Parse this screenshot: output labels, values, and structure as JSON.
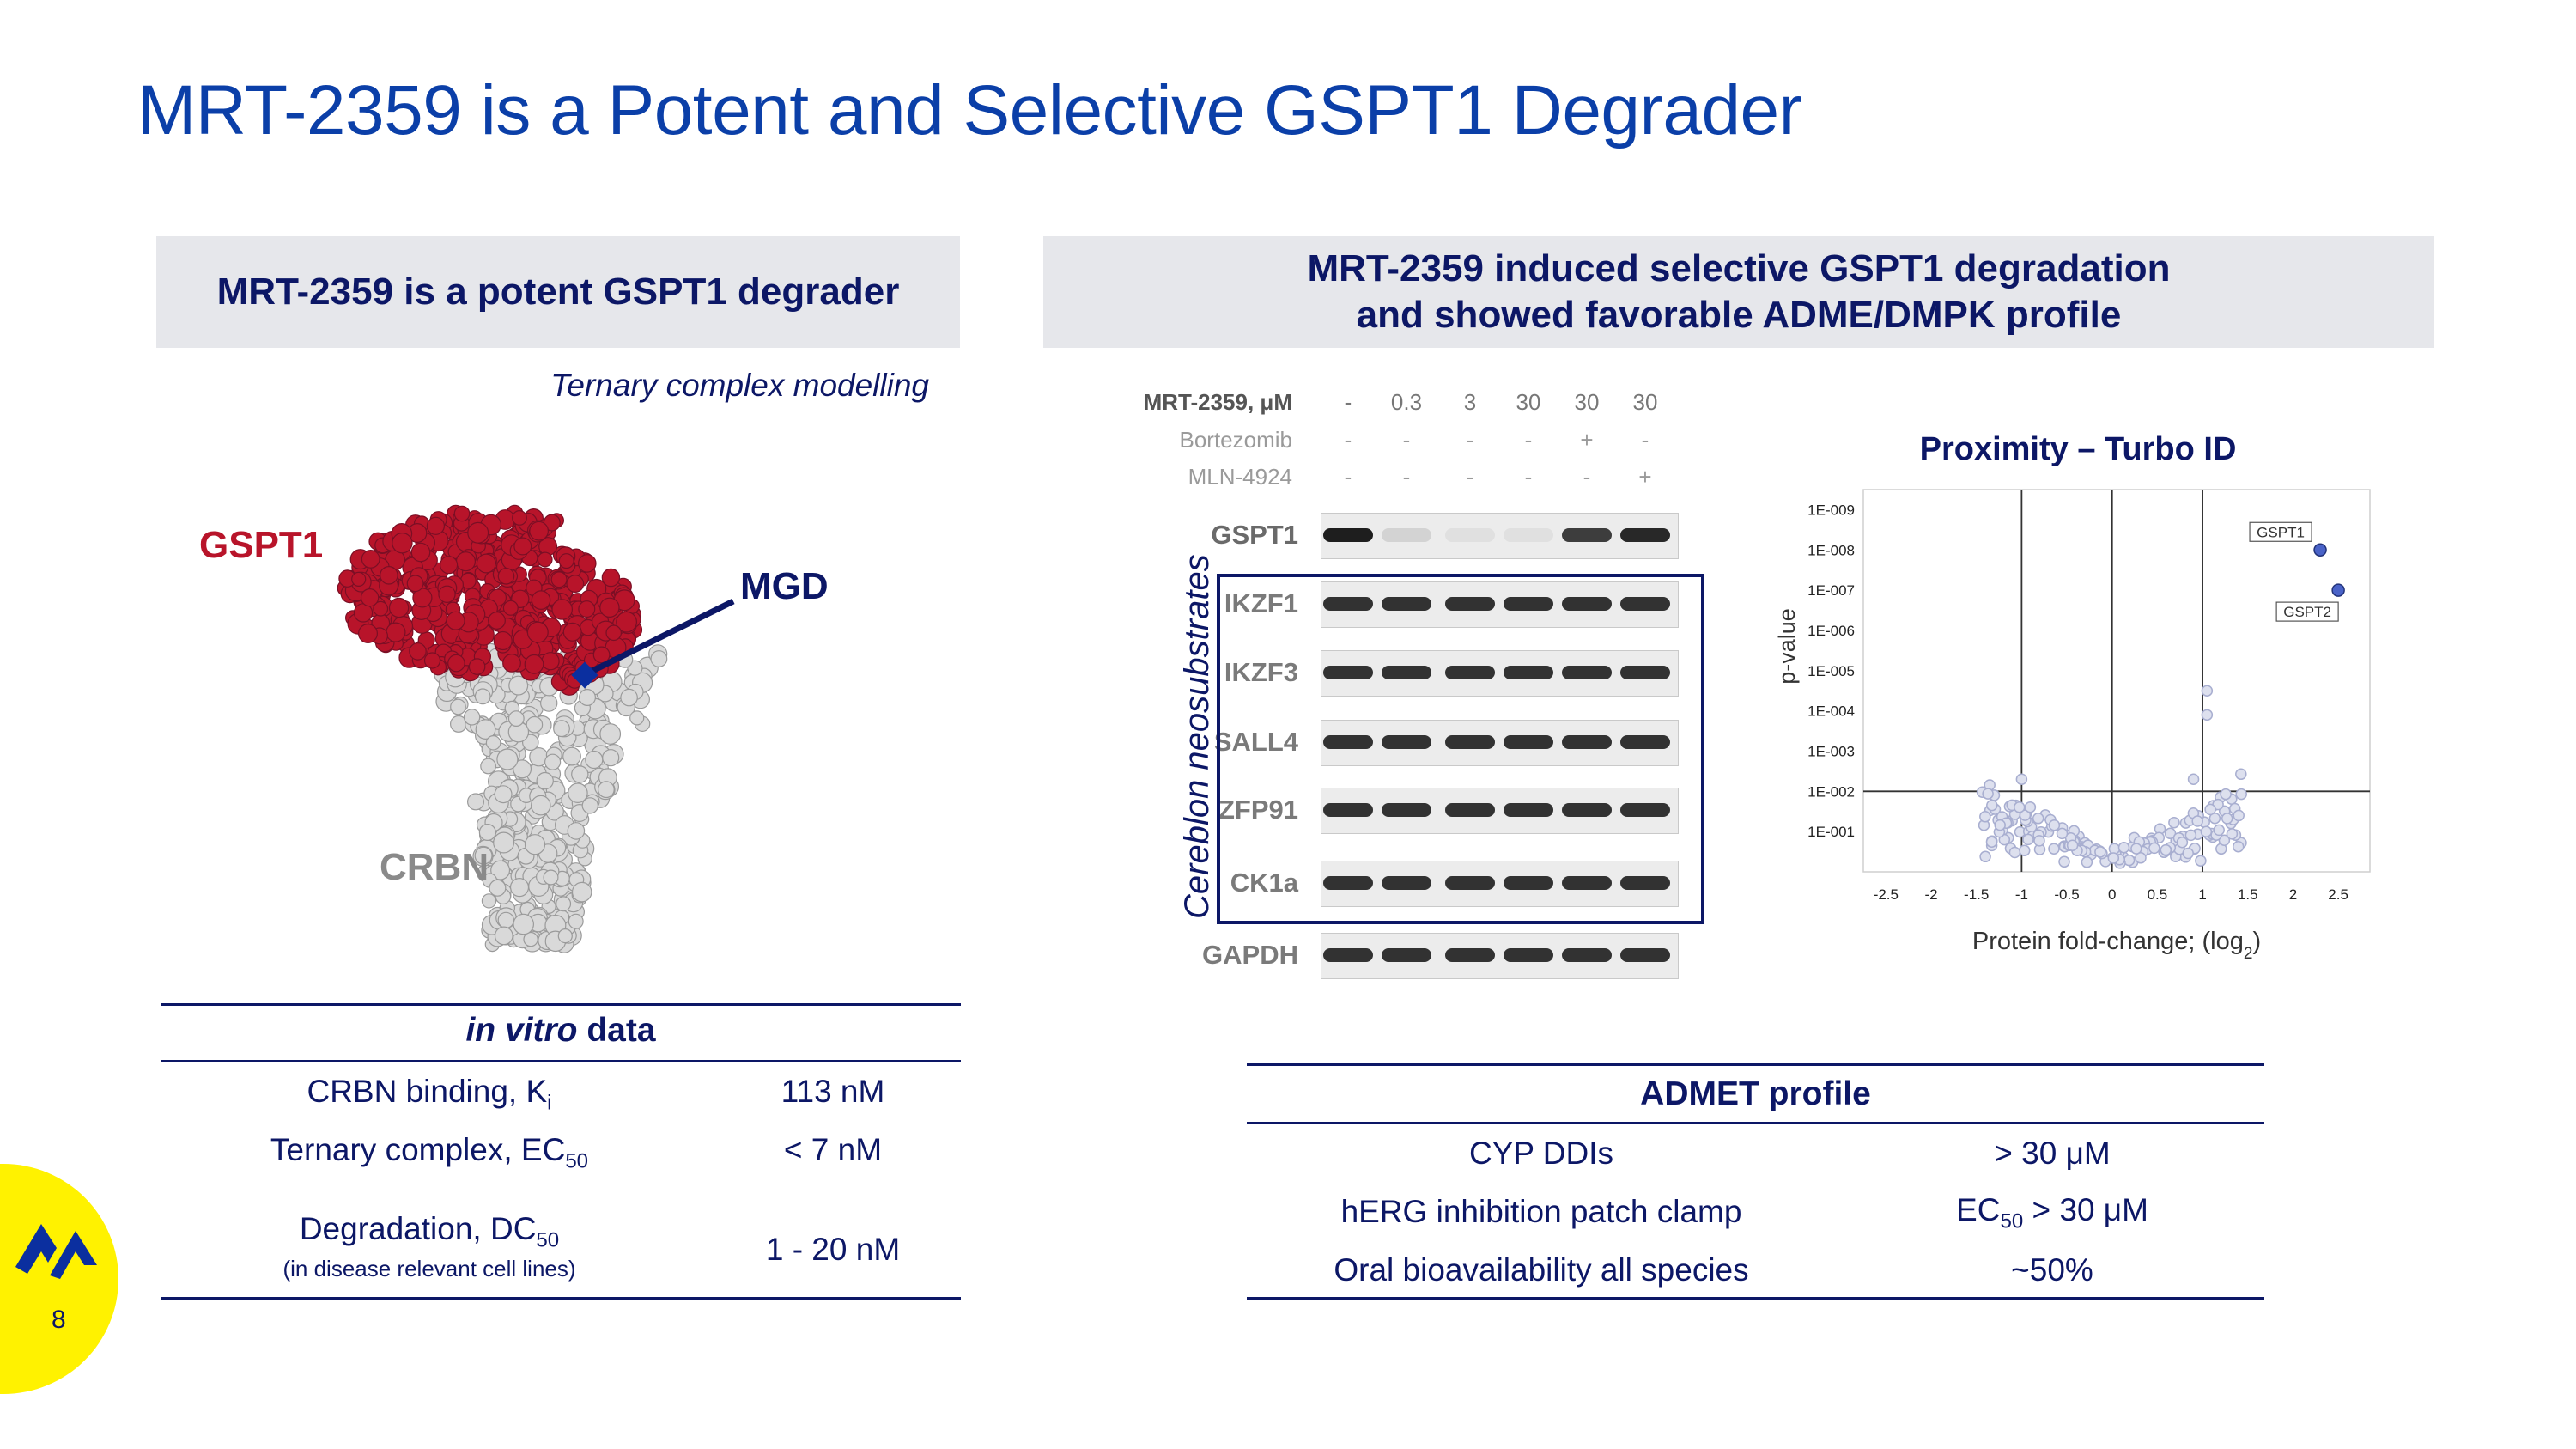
{
  "title": "MRT-2359 is a Potent and Selective GSPT1 Degrader",
  "left_panel": {
    "header": "MRT-2359 is a potent GSPT1 degrader",
    "caption": "Ternary complex modelling",
    "labels": {
      "gspt1": "GSPT1",
      "mgd": "MGD",
      "crbn": "CRBN"
    },
    "colors": {
      "gspt1": "#b8142a",
      "crbn": "#d9d9d9",
      "mgd": "#0b2f9f"
    },
    "invitro": {
      "title_italic": "in vitro",
      "title_rest": " data",
      "rows": [
        {
          "label": "CRBN binding, K",
          "sub": "i",
          "value": "113 nM"
        },
        {
          "label": "Ternary complex, EC",
          "sub": "50",
          "value": "< 7 nM"
        },
        {
          "label": "Degradation, DC",
          "sub": "50",
          "note": "(in disease relevant cell lines)",
          "value": "1 - 20 nM"
        }
      ]
    }
  },
  "right_panel": {
    "header_line1": "MRT-2359 induced selective GSPT1 degradation",
    "header_line2": "and showed favorable ADME/DMPK profile",
    "blot": {
      "treatments": [
        {
          "label": "MRT-2359, μM",
          "values": [
            "-",
            "0.3",
            "3",
            "30",
            "30",
            "30"
          ]
        },
        {
          "label": "Bortezomib",
          "values": [
            "-",
            "-",
            "-",
            "-",
            "+",
            "-"
          ]
        },
        {
          "label": "MLN-4924",
          "values": [
            "-",
            "-",
            "-",
            "-",
            "-",
            "+"
          ]
        }
      ],
      "proteins": [
        "GSPT1",
        "IKZF1",
        "IKZF3",
        "SALL4",
        "ZFP91",
        "CK1a",
        "GAPDH"
      ],
      "gspt1_band_intensity": [
        1.0,
        0.12,
        0.06,
        0.06,
        0.85,
        0.95
      ],
      "group_label": "Cereblon neosubstrates"
    },
    "volcano": {
      "title": "Proximity – Turbo ID",
      "ylabel": "p-value",
      "xlabel": "Protein fold-change; (log",
      "xlabel_sub": "2",
      "xlabel_end": ")",
      "xticks": [
        "-2.5",
        "-2",
        "-1.5",
        "-1",
        "-0.5",
        "0",
        "0.5",
        "1",
        "1.5",
        "2",
        "2.5"
      ],
      "yticks": [
        "1E-001",
        "1E-002",
        "1E-003",
        "1E-004",
        "1E-005",
        "1E-006",
        "1E-007",
        "1E-008",
        "1E-009"
      ],
      "highlight": [
        {
          "label": "GSPT1",
          "x": 2.3,
          "y": 8.0
        },
        {
          "label": "GSPT2",
          "x": 2.5,
          "y": 7.0
        }
      ]
    },
    "admet": {
      "title": "ADMET profile",
      "rows": [
        {
          "label": "CYP DDIs",
          "value": "> 30 μM"
        },
        {
          "label": "hERG inhibition patch clamp",
          "value_pre": "EC",
          "value_sub": "50",
          "value_post": " > 30 μM"
        },
        {
          "label": "Oral bioavailability all species",
          "value": "~50%"
        }
      ]
    }
  },
  "page_number": "8"
}
